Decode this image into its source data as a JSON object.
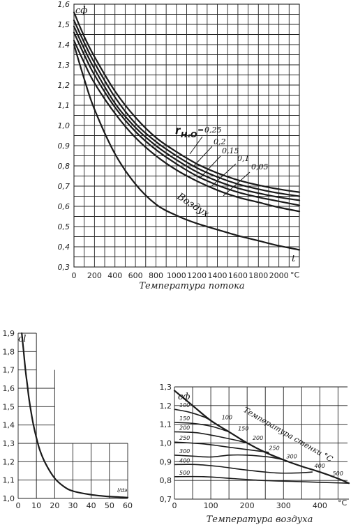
{
  "chart_data": [
    {
      "id": "top",
      "type": "line",
      "symbol": "cф",
      "xlabel": "Температура потока",
      "x_symbol": "t",
      "x_unit": "°C",
      "xlim": [
        0,
        2200
      ],
      "ylim": [
        0.3,
        1.6
      ],
      "x_ticks": [
        0,
        200,
        400,
        600,
        800,
        1000,
        1200,
        1400,
        1600,
        1800,
        2000
      ],
      "y_ticks": [
        "0,3",
        "0,4",
        "0,5",
        "0,6",
        "0,7",
        "0,8",
        "0,9",
        "1,0",
        "1,1",
        "1,2",
        "1,3",
        "1,4",
        "1,5",
        "1,6"
      ],
      "legend_title_main": "r",
      "legend_title_sub": "H₂O",
      "legend_first_prefix": "=",
      "series": [
        {
          "name": "0,25",
          "x": [
            0,
            100,
            200,
            400,
            600,
            800,
            1000,
            1200,
            1400,
            1600,
            1800,
            2000,
            2200
          ],
          "y": [
            1.56,
            1.44,
            1.34,
            1.17,
            1.04,
            0.94,
            0.87,
            0.81,
            0.765,
            0.73,
            0.705,
            0.685,
            0.67
          ]
        },
        {
          "name": "0,2",
          "x": [
            0,
            100,
            200,
            400,
            600,
            800,
            1000,
            1200,
            1400,
            1600,
            1800,
            2000,
            2200
          ],
          "y": [
            1.52,
            1.41,
            1.31,
            1.14,
            1.01,
            0.92,
            0.85,
            0.79,
            0.745,
            0.71,
            0.685,
            0.665,
            0.65
          ]
        },
        {
          "name": "0,15",
          "x": [
            0,
            100,
            200,
            400,
            600,
            800,
            1000,
            1200,
            1400,
            1600,
            1800,
            2000,
            2200
          ],
          "y": [
            1.49,
            1.38,
            1.28,
            1.11,
            0.99,
            0.9,
            0.83,
            0.77,
            0.725,
            0.69,
            0.665,
            0.645,
            0.63
          ]
        },
        {
          "name": "0,1",
          "x": [
            0,
            100,
            200,
            400,
            600,
            800,
            1000,
            1200,
            1400,
            1600,
            1800,
            2000,
            2200
          ],
          "y": [
            1.46,
            1.35,
            1.25,
            1.09,
            0.97,
            0.88,
            0.81,
            0.75,
            0.705,
            0.67,
            0.645,
            0.625,
            0.605
          ]
        },
        {
          "name": "0,05",
          "x": [
            0,
            100,
            200,
            400,
            600,
            800,
            1000,
            1200,
            1400,
            1600,
            1800,
            2000,
            2200
          ],
          "y": [
            1.42,
            1.31,
            1.21,
            1.06,
            0.94,
            0.85,
            0.78,
            0.725,
            0.68,
            0.645,
            0.62,
            0.595,
            0.575
          ]
        },
        {
          "name": "Воздух",
          "x": [
            0,
            100,
            200,
            400,
            600,
            800,
            1000,
            1200,
            1400,
            1600,
            1800,
            2000,
            2200
          ],
          "y": [
            1.4,
            1.23,
            1.08,
            0.86,
            0.71,
            0.61,
            0.555,
            0.515,
            0.485,
            0.455,
            0.43,
            0.405,
            0.385
          ]
        }
      ]
    },
    {
      "id": "bottom-left",
      "type": "line",
      "symbol": "cl",
      "x_symbol": "l/dэ",
      "xlim": [
        0,
        60
      ],
      "ylim": [
        1.0,
        1.9
      ],
      "x_ticks": [
        0,
        10,
        20,
        30,
        40,
        50,
        60
      ],
      "y_ticks": [
        "1,0",
        "1,1",
        "1,2",
        "1,3",
        "1,4",
        "1,5",
        "1,6",
        "1,7",
        "1,8",
        "1,9"
      ],
      "series": [
        {
          "x": [
            2,
            3,
            4,
            5,
            6,
            8,
            10,
            12,
            15,
            20,
            25,
            30,
            40,
            50,
            60
          ],
          "y": [
            1.9,
            1.8,
            1.7,
            1.62,
            1.54,
            1.42,
            1.33,
            1.26,
            1.19,
            1.11,
            1.065,
            1.04,
            1.02,
            1.01,
            1.005
          ]
        }
      ]
    },
    {
      "id": "bottom-right",
      "type": "line",
      "symbol": "cф",
      "xlabel": "Температура воздуха",
      "x_unit": "°C",
      "xlim": [
        0,
        480
      ],
      "ylim": [
        0.7,
        1.3
      ],
      "x_ticks": [
        0,
        100,
        200,
        300,
        400
      ],
      "y_ticks": [
        "0,7",
        "0,8",
        "0,9",
        "1,0",
        "1,1",
        "1,2",
        "1,3"
      ],
      "wall_label": "Температура стенки °С",
      "series": [
        {
          "name": "100",
          "x": [
            0,
            40,
            80,
            100
          ],
          "y": [
            1.18,
            1.165,
            1.14,
            1.12
          ]
        },
        {
          "name": "150",
          "x": [
            0,
            50,
            100,
            150
          ],
          "y": [
            1.11,
            1.105,
            1.09,
            1.06
          ]
        },
        {
          "name": "200",
          "x": [
            0,
            60,
            120,
            180,
            200
          ],
          "y": [
            1.06,
            1.055,
            1.035,
            1.01,
            1.0
          ]
        },
        {
          "name": "250",
          "x": [
            0,
            80,
            160,
            240,
            260
          ],
          "y": [
            1.005,
            0.995,
            0.975,
            0.955,
            0.95
          ]
        },
        {
          "name": "300",
          "x": [
            0,
            50,
            100,
            150,
            200,
            260,
            300
          ],
          "y": [
            0.935,
            0.93,
            0.925,
            0.935,
            0.935,
            0.925,
            0.91
          ]
        },
        {
          "name": "400",
          "x": [
            0,
            60,
            120,
            200,
            280,
            340,
            380
          ],
          "y": [
            0.885,
            0.885,
            0.875,
            0.855,
            0.84,
            0.84,
            0.845
          ]
        },
        {
          "name": "500",
          "x": [
            0,
            80,
            160,
            240,
            320,
            400,
            480
          ],
          "y": [
            0.82,
            0.82,
            0.81,
            0.8,
            0.795,
            0.79,
            0.785
          ]
        },
        {
          "name": "envelope",
          "x": [
            0,
            50,
            100,
            150,
            200,
            250,
            300,
            350,
            400,
            450,
            480
          ],
          "y": [
            1.28,
            1.2,
            1.12,
            1.06,
            1.0,
            0.95,
            0.91,
            0.875,
            0.845,
            0.81,
            0.785
          ]
        }
      ],
      "curve_labels": [
        {
          "text": "100",
          "x": 130,
          "y": 1.12
        },
        {
          "text": "150",
          "x": 175,
          "y": 1.06
        },
        {
          "text": "200",
          "x": 215,
          "y": 1.01
        },
        {
          "text": "250",
          "x": 260,
          "y": 0.955
        },
        {
          "text": "300",
          "x": 308,
          "y": 0.91
        },
        {
          "text": "400",
          "x": 385,
          "y": 0.86
        },
        {
          "text": "500",
          "x": 435,
          "y": 0.82
        }
      ]
    }
  ]
}
